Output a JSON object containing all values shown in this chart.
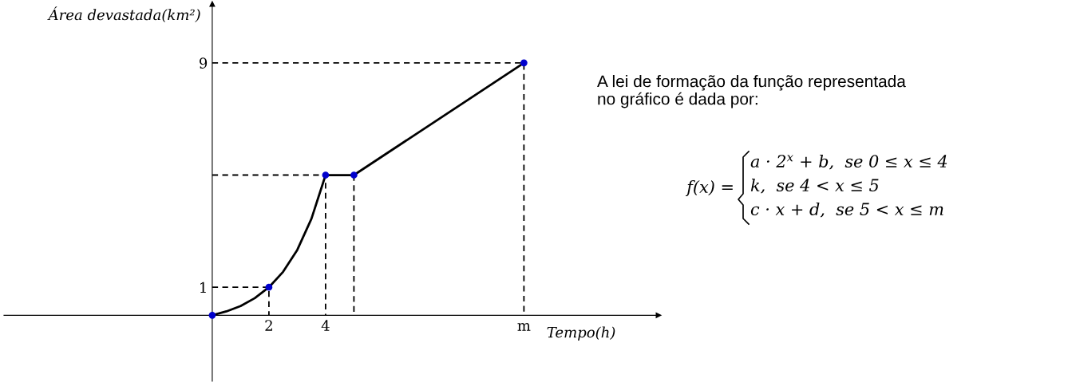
{
  "chart_data": {
    "type": "line",
    "xlabel": "Tempo(h)",
    "ylabel": "Área devastada(km²)",
    "xlim": [
      -7.35,
      15.75
    ],
    "ylim": [
      -2.35,
      11.1
    ],
    "xticks": [
      2,
      4,
      {
        "value": 11,
        "label": "m"
      }
    ],
    "yticks": [
      1,
      9
    ],
    "grid": false,
    "legend": false,
    "marker": "none",
    "line_style": "solid",
    "series": [
      {
        "color": "#000000",
        "x": [
          0,
          0.5,
          1,
          1.5,
          2,
          2.5,
          3,
          3.5,
          4,
          5,
          11
        ],
        "values": [
          0,
          0.14,
          0.33,
          0.61,
          1,
          1.55,
          2.33,
          3.44,
          5,
          5,
          9
        ]
      },
      {
        "type": "line",
        "line_style": "dashed",
        "color": "#000000",
        "x": [
          0,
          2,
          2
        ],
        "values": [
          1,
          1,
          0
        ]
      },
      {
        "type": "line",
        "line_style": "dashed",
        "color": "#000000",
        "x": [
          0,
          4,
          4
        ],
        "values": [
          5,
          5,
          0
        ]
      },
      {
        "type": "line",
        "line_style": "dashed",
        "color": "#000000",
        "x": [
          5,
          5
        ],
        "values": [
          5,
          0
        ]
      },
      {
        "type": "line",
        "line_style": "dashed",
        "color": "#000000",
        "x": [
          0,
          11,
          11
        ],
        "values": [
          9,
          9,
          0
        ]
      },
      {
        "type": "scatter",
        "marker": "circle",
        "color": "#0000cc",
        "x": [
          0,
          2,
          4,
          5,
          11
        ],
        "values": [
          0,
          1,
          5,
          5,
          9
        ]
      }
    ],
    "annotations": [
      "A lei de formação da função representada\nno gráfico é dada por:",
      "f(x) =",
      "a · 2$^{x}$ + b,  se 0 ≤ x ≤ 4",
      "k,  se 4 < x ≤ 5",
      "c · x + d,  se 5 < x ≤ m"
    ]
  }
}
